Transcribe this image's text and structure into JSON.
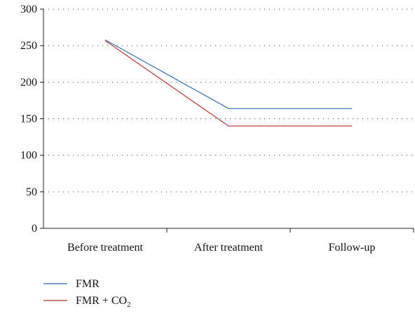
{
  "chart_data": {
    "type": "line",
    "categories": [
      "Before treatment",
      "After treatment",
      "Follow-up"
    ],
    "y_ticks": [
      "0",
      "50",
      "100",
      "150",
      "200",
      "250",
      "300"
    ],
    "ylim": [
      0,
      300
    ],
    "grid": true,
    "legend_position": "bottom-left",
    "series": [
      {
        "name": "FMR",
        "name_sub": "",
        "values": [
          258,
          164,
          164
        ],
        "color": "#4f7fbd"
      },
      {
        "name": "FMR + CO",
        "name_sub": "2",
        "values": [
          257,
          140,
          140
        ],
        "color": "#c0504d"
      }
    ]
  }
}
